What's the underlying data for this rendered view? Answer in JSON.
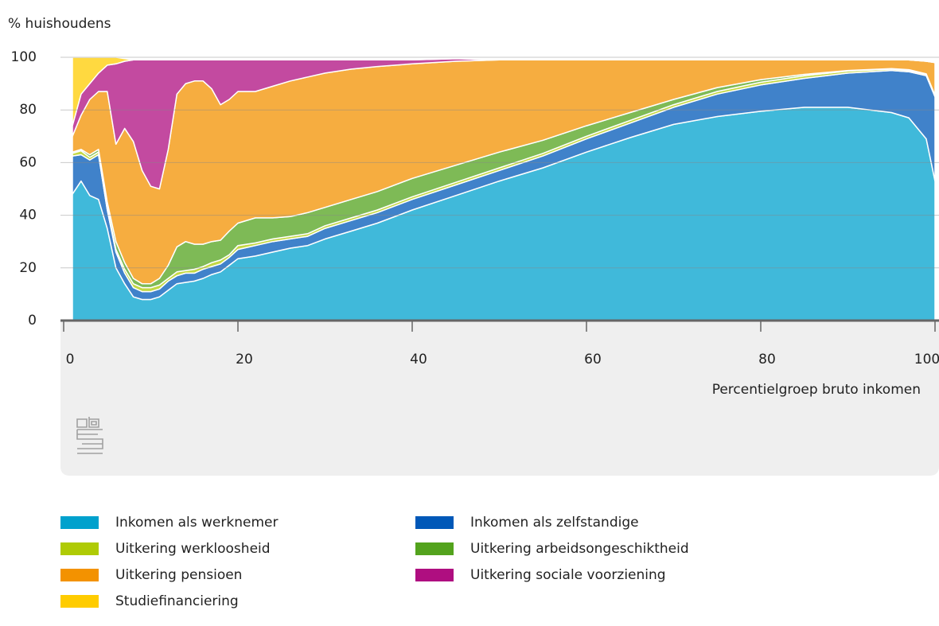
{
  "chart_data": {
    "type": "stacked-area",
    "y_label": "% huishoudens",
    "x_label": "Percentielgroep bruto inkomen",
    "x": [
      1,
      2,
      3,
      4,
      5,
      6,
      7,
      8,
      9,
      10,
      11,
      12,
      13,
      14,
      15,
      16,
      17,
      18,
      19,
      20,
      22,
      24,
      26,
      28,
      30,
      33,
      36,
      40,
      45,
      50,
      55,
      60,
      65,
      70,
      75,
      80,
      85,
      90,
      95,
      97,
      99,
      100
    ],
    "xlim": [
      0,
      100
    ],
    "xticks": [
      0,
      20,
      40,
      60,
      80,
      100
    ],
    "ylim": [
      0,
      100
    ],
    "yticks": [
      0,
      20,
      40,
      60,
      80,
      100
    ],
    "grid": true,
    "series": [
      {
        "name": "Inkomen als werknemer",
        "color": "#00a1cd",
        "values": [
          48,
          53,
          47.5,
          46,
          35,
          20,
          14,
          9,
          8,
          8,
          9,
          11.5,
          14,
          14.5,
          15,
          16,
          17.5,
          18.5,
          21,
          23.5,
          24.5,
          26,
          27.5,
          28.5,
          31,
          34,
          37,
          42,
          47.5,
          53,
          58,
          64,
          69.5,
          74.5,
          77.5,
          79.5,
          81,
          81,
          79,
          77,
          69,
          53
        ]
      },
      {
        "name": "Inkomen als zelfstandige",
        "color": "#0058b8",
        "values": [
          14.5,
          10,
          13.5,
          17,
          7,
          6,
          4,
          3.5,
          3,
          3,
          3,
          3.5,
          3,
          3.5,
          3,
          3.5,
          3,
          3,
          3,
          3.5,
          4,
          4,
          3.5,
          3.5,
          4,
          4,
          4,
          4,
          4,
          4,
          4.5,
          5,
          5.5,
          6.5,
          8.5,
          10,
          11,
          13,
          16,
          17.5,
          24,
          32
        ]
      },
      {
        "name": "Uitkering werkloosheid",
        "color": "#afcb05",
        "values": [
          1,
          1.5,
          1,
          1,
          1,
          1,
          1.5,
          1.5,
          1.5,
          1.5,
          1.5,
          1,
          1.5,
          1,
          1.5,
          1,
          1.5,
          1.5,
          1,
          1.5,
          1,
          1,
          1,
          1,
          1,
          1,
          1,
          1,
          1,
          1,
          1,
          1,
          1,
          1,
          1,
          1,
          1,
          0.8,
          0.5,
          0.5,
          0.5,
          0.5
        ]
      },
      {
        "name": "Uitkering arbeidsongeschiktheid",
        "color": "#53a31d",
        "values": [
          0.5,
          0.5,
          1,
          1,
          2,
          3,
          2.5,
          2,
          1.5,
          1.5,
          2.5,
          5,
          9.5,
          11,
          9.5,
          8.5,
          8,
          7.5,
          9,
          8.5,
          9.5,
          8,
          7.5,
          8,
          7,
          7,
          7,
          7,
          6.5,
          6,
          5,
          4,
          3,
          2,
          1.5,
          1,
          0.5,
          0.2,
          0.2,
          0.3,
          0.2,
          0.1
        ]
      },
      {
        "name": "Uitkering pensioen",
        "color": "#f39200",
        "values": [
          6,
          13,
          21,
          22,
          42,
          37,
          51,
          52,
          43,
          37,
          34,
          44,
          58,
          60,
          62,
          62,
          58,
          51.5,
          50,
          50,
          48,
          50,
          51.5,
          51.5,
          51,
          49.5,
          47.5,
          43.5,
          39.5,
          35,
          30.5,
          25,
          20,
          15,
          10.5,
          7.5,
          5.5,
          4,
          3.3,
          3.7,
          4.8,
          12.4
        ]
      },
      {
        "name": "Uitkering sociale voorziening",
        "color": "#af0e80",
        "values": [
          4,
          8,
          6,
          7,
          10,
          30.5,
          25.5,
          31,
          42,
          48,
          49,
          34,
          13,
          9,
          8,
          8,
          11,
          17,
          15,
          12,
          12,
          10,
          8,
          6.5,
          5,
          3.5,
          2.5,
          1.5,
          1,
          0,
          0,
          0,
          0,
          0,
          0,
          0,
          0,
          0,
          0,
          0,
          0,
          0
        ]
      },
      {
        "name": "Studiefinanciering",
        "color": "#ffcc00",
        "values": [
          26,
          14,
          10,
          6,
          3,
          2.5,
          1,
          0,
          0,
          0,
          0,
          0,
          0,
          0,
          0,
          0,
          0,
          0,
          0,
          0,
          0,
          0,
          0,
          0,
          0,
          0,
          0,
          0,
          0,
          0,
          0,
          0,
          0,
          0,
          0,
          0,
          0,
          0,
          0,
          0,
          0,
          0
        ]
      }
    ]
  }
}
